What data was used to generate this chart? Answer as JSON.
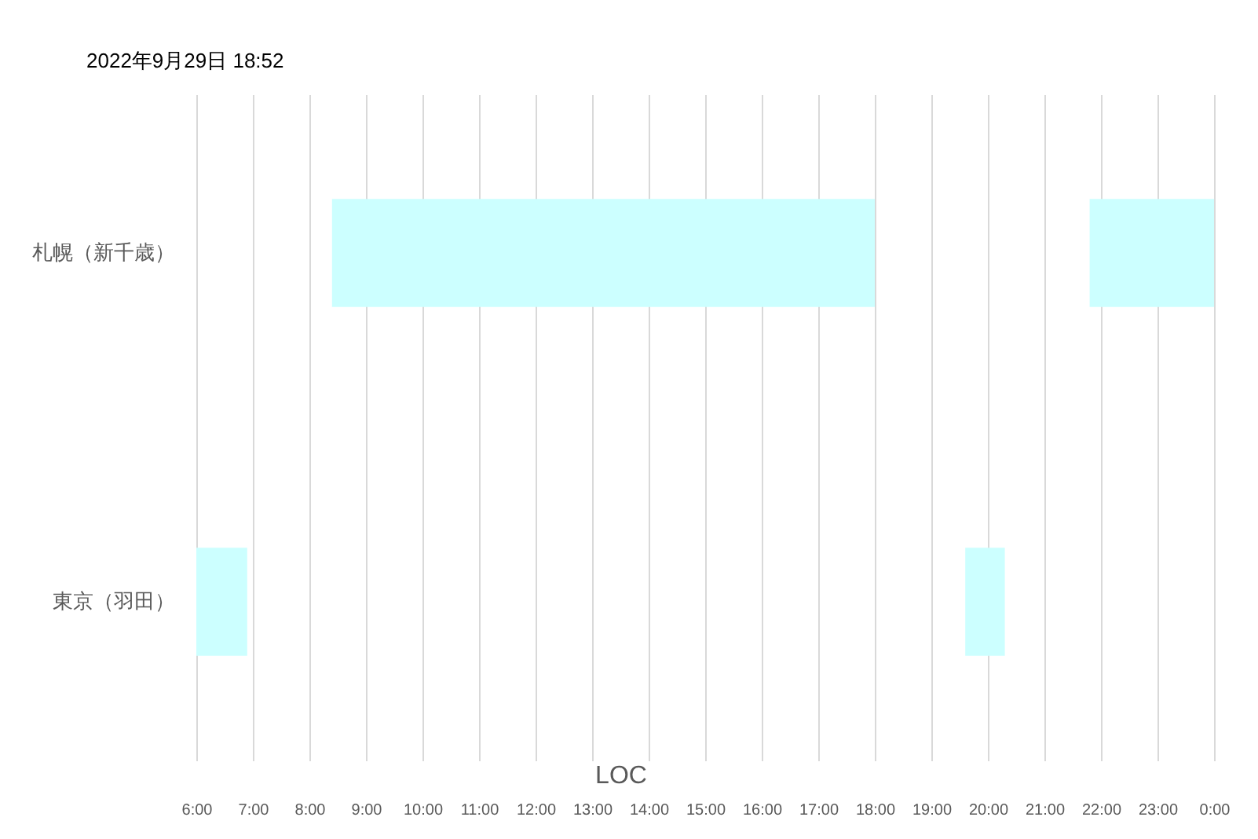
{
  "chart_data": {
    "type": "bar",
    "orientation": "horizontal",
    "title": "2022年9月29日 18:52",
    "xlabel": "LOC",
    "categories": [
      "札幌（新千歳）",
      "東京（羽田）"
    ],
    "series": [
      {
        "color": "#ccffff",
        "base": [
          8.4,
          6.0
        ],
        "values": [
          9.6,
          0.9
        ]
      },
      {
        "color": "#ccffff",
        "base": [
          21.8,
          19.6
        ],
        "values": [
          2.2,
          0.7
        ]
      }
    ],
    "xlim": [
      6,
      24
    ],
    "xticks": [
      {
        "value": 6,
        "label": "6:00"
      },
      {
        "value": 7,
        "label": "7:00"
      },
      {
        "value": 8,
        "label": "8:00"
      },
      {
        "value": 9,
        "label": "9:00"
      },
      {
        "value": 10,
        "label": "10:00"
      },
      {
        "value": 11,
        "label": "11:00"
      },
      {
        "value": 12,
        "label": "12:00"
      },
      {
        "value": 13,
        "label": "13:00"
      },
      {
        "value": 14,
        "label": "14:00"
      },
      {
        "value": 15,
        "label": "15:00"
      },
      {
        "value": 16,
        "label": "16:00"
      },
      {
        "value": 17,
        "label": "17:00"
      },
      {
        "value": 18,
        "label": "18:00"
      },
      {
        "value": 19,
        "label": "19:00"
      },
      {
        "value": 20,
        "label": "20:00"
      },
      {
        "value": 21,
        "label": "21:00"
      },
      {
        "value": 22,
        "label": "22:00"
      },
      {
        "value": 23,
        "label": "23:00"
      },
      {
        "value": 24,
        "label": "0:00"
      }
    ],
    "grid": "x"
  }
}
